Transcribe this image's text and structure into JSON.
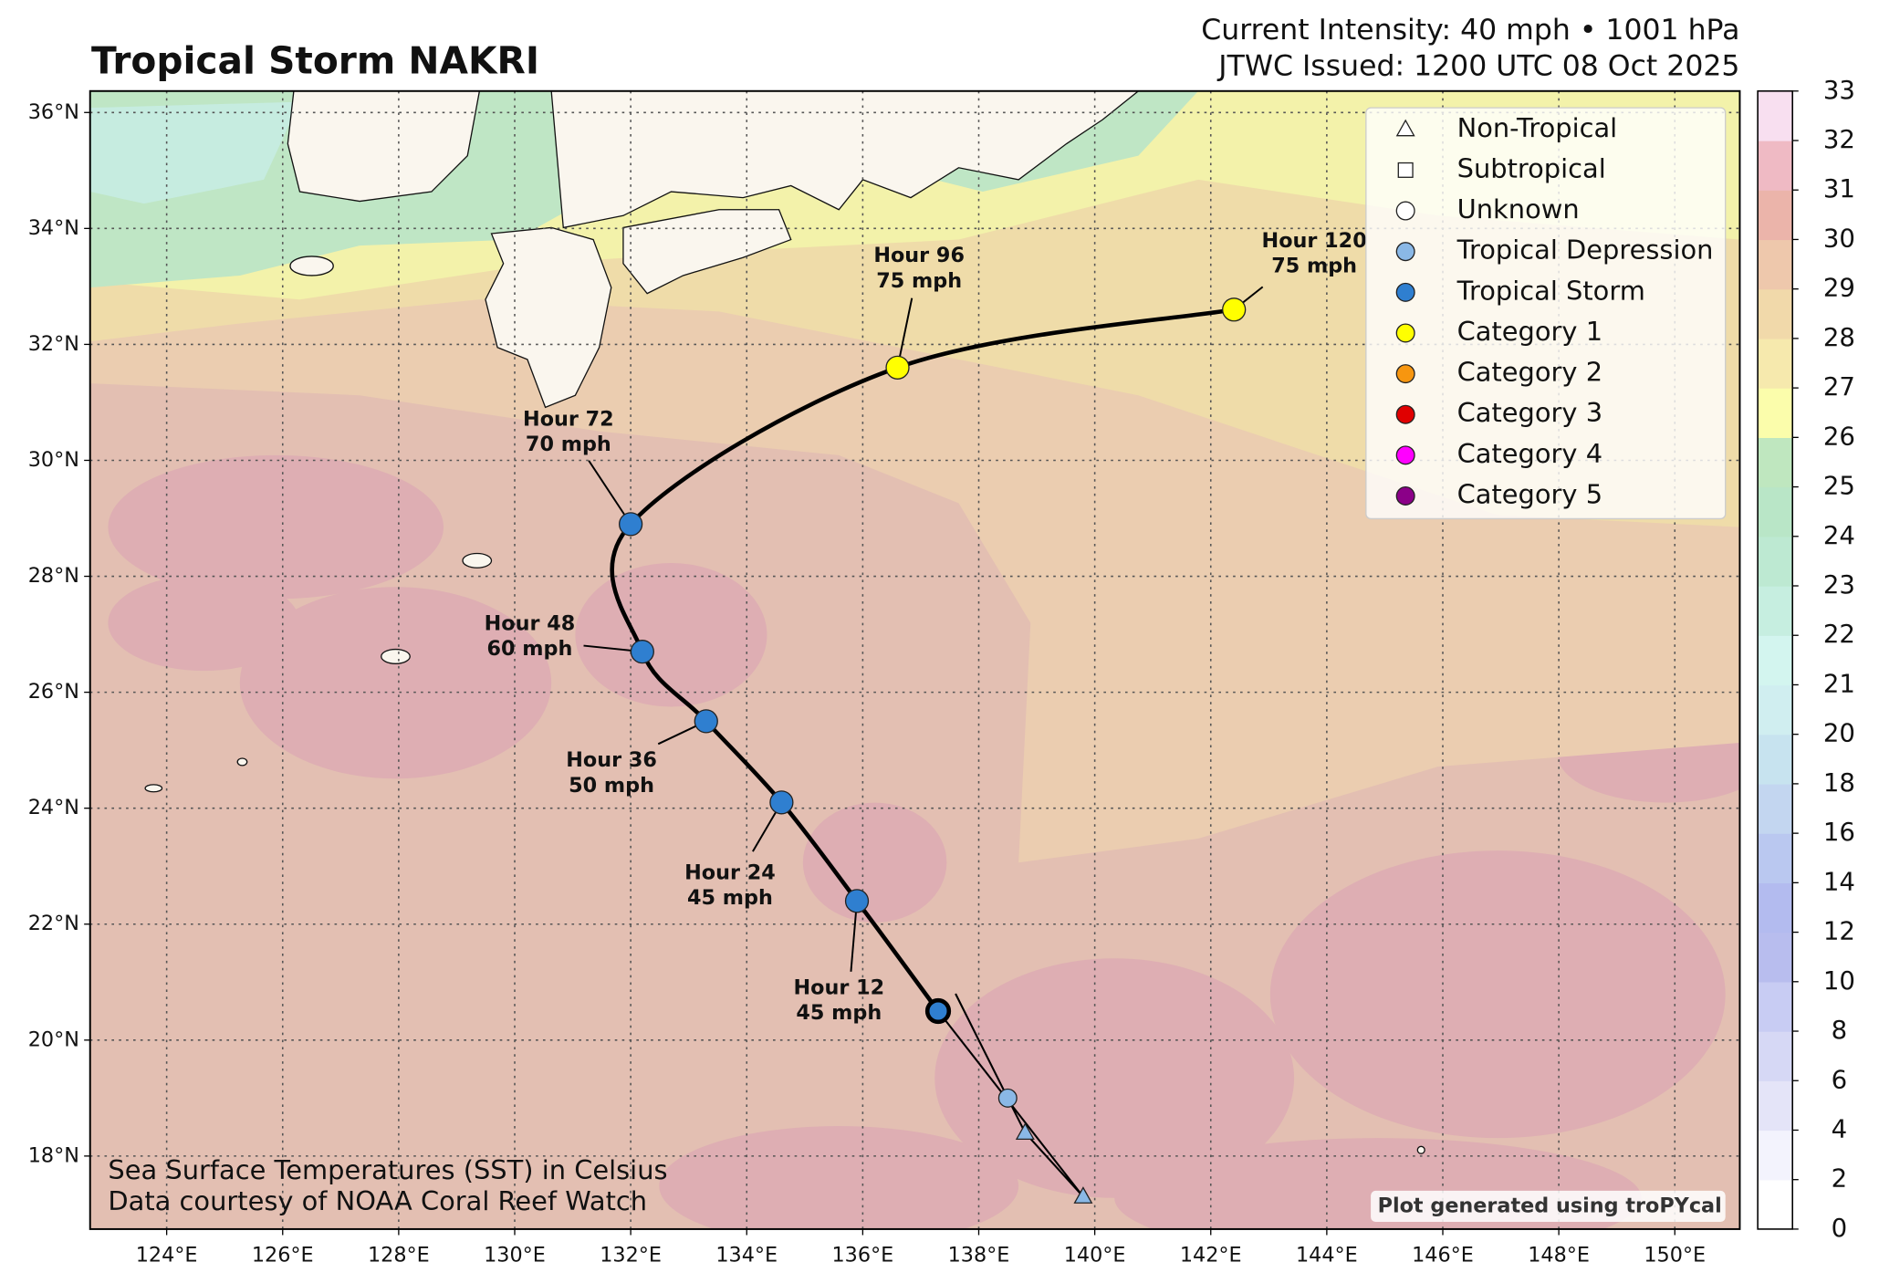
{
  "header": {
    "title": "Tropical Storm NAKRI",
    "intensity": "Current Intensity: 40 mph • 1001 hPa",
    "issued": "JTWC Issued: 1200 UTC 08 Oct 2025"
  },
  "chart_data": {
    "type": "map",
    "xlim": [
      122.68,
      151.12
    ],
    "ylim": [
      16.74,
      36.37
    ],
    "grid": true,
    "xticks": [
      {
        "value": 124,
        "label": "124°E"
      },
      {
        "value": 126,
        "label": "126°E"
      },
      {
        "value": 128,
        "label": "128°E"
      },
      {
        "value": 130,
        "label": "130°E"
      },
      {
        "value": 132,
        "label": "132°E"
      },
      {
        "value": 134,
        "label": "134°E"
      },
      {
        "value": 136,
        "label": "136°E"
      },
      {
        "value": 138,
        "label": "138°E"
      },
      {
        "value": 140,
        "label": "140°E"
      },
      {
        "value": 142,
        "label": "142°E"
      },
      {
        "value": 144,
        "label": "144°E"
      },
      {
        "value": 146,
        "label": "146°E"
      },
      {
        "value": 148,
        "label": "148°E"
      },
      {
        "value": 150,
        "label": "150°E"
      }
    ],
    "yticks": [
      {
        "value": 18,
        "label": "18°N"
      },
      {
        "value": 20,
        "label": "20°N"
      },
      {
        "value": 22,
        "label": "22°N"
      },
      {
        "value": 24,
        "label": "24°N"
      },
      {
        "value": 26,
        "label": "26°N"
      },
      {
        "value": 28,
        "label": "28°N"
      },
      {
        "value": 30,
        "label": "30°N"
      },
      {
        "value": 32,
        "label": "32°N"
      },
      {
        "value": 34,
        "label": "34°N"
      },
      {
        "value": 36,
        "label": "36°N"
      }
    ],
    "past_track": [
      {
        "lon": 139.8,
        "lat": 17.3,
        "marker": "triangle",
        "color": "#8ab8e6"
      },
      {
        "lon": 138.8,
        "lat": 18.4,
        "marker": "triangle",
        "color": "#8ab8e6"
      },
      {
        "lon": 138.5,
        "lat": 19.0,
        "marker": "circle",
        "color": "#8ab8e6"
      }
    ],
    "current": {
      "lon": 137.3,
      "lat": 20.5,
      "color": "#2f7fd0"
    },
    "forecast": [
      {
        "lon": 135.9,
        "lat": 22.4,
        "label": "Hour 12",
        "intensity": "45 mph",
        "color": "#2f7fd0"
      },
      {
        "lon": 134.6,
        "lat": 24.1,
        "label": "Hour 24",
        "intensity": "45 mph",
        "color": "#2f7fd0"
      },
      {
        "lon": 133.3,
        "lat": 25.5,
        "label": "Hour 36",
        "intensity": "50 mph",
        "color": "#2f7fd0"
      },
      {
        "lon": 132.2,
        "lat": 26.7,
        "label": "Hour 48",
        "intensity": "60 mph",
        "color": "#2f7fd0"
      },
      {
        "lon": 132.0,
        "lat": 28.9,
        "label": "Hour 72",
        "intensity": "70 mph",
        "color": "#2f7fd0"
      },
      {
        "lon": 136.6,
        "lat": 31.6,
        "label": "Hour 96",
        "intensity": "75 mph",
        "color": "#ffff00"
      },
      {
        "lon": 142.4,
        "lat": 32.6,
        "label": "Hour 120",
        "intensity": "75 mph",
        "color": "#ffff00"
      }
    ],
    "legend": [
      {
        "name": "Non-Tropical",
        "marker": "triangle",
        "color": "#ffffff"
      },
      {
        "name": "Subtropical",
        "marker": "square",
        "color": "#ffffff"
      },
      {
        "name": "Unknown",
        "marker": "circle",
        "color": "#ffffff"
      },
      {
        "name": "Tropical Depression",
        "marker": "circle",
        "color": "#8ab8e6"
      },
      {
        "name": "Tropical Storm",
        "marker": "circle",
        "color": "#2f7fd0"
      },
      {
        "name": "Category 1",
        "marker": "circle",
        "color": "#ffff00"
      },
      {
        "name": "Category 2",
        "marker": "circle",
        "color": "#f7960f"
      },
      {
        "name": "Category 3",
        "marker": "circle",
        "color": "#e00000"
      },
      {
        "name": "Category 4",
        "marker": "circle",
        "color": "#ff00ff"
      },
      {
        "name": "Category 5",
        "marker": "circle",
        "color": "#8b0088"
      }
    ],
    "colorbar": {
      "ticks": [
        0,
        2,
        4,
        6,
        8,
        10,
        12,
        14,
        16,
        18,
        20,
        21,
        22,
        23,
        24,
        25,
        26,
        27,
        28,
        29,
        30,
        31,
        32,
        33
      ],
      "colors": [
        "#ffffff",
        "#f3f3fd",
        "#e4e4f8",
        "#d6d8f5",
        "#c8ccf3",
        "#b8bdee",
        "#b3bbef",
        "#bac8f0",
        "#c3d6f0",
        "#c7e3ef",
        "#d0eef0",
        "#d3f5ef",
        "#c6eee0",
        "#bde9d2",
        "#b9e6c7",
        "#bfe7bf",
        "#fbfdab",
        "#f6e9ad",
        "#f1d9aa",
        "#eec8ac",
        "#ebb4aa",
        "#efbac4",
        "#f8dff0"
      ]
    },
    "notes": [
      "Sea Surface Temperatures (SST) in Celsius",
      "Data courtesy of NOAA Coral Reef Watch"
    ],
    "credit": "Plot generated using troPYcal"
  }
}
